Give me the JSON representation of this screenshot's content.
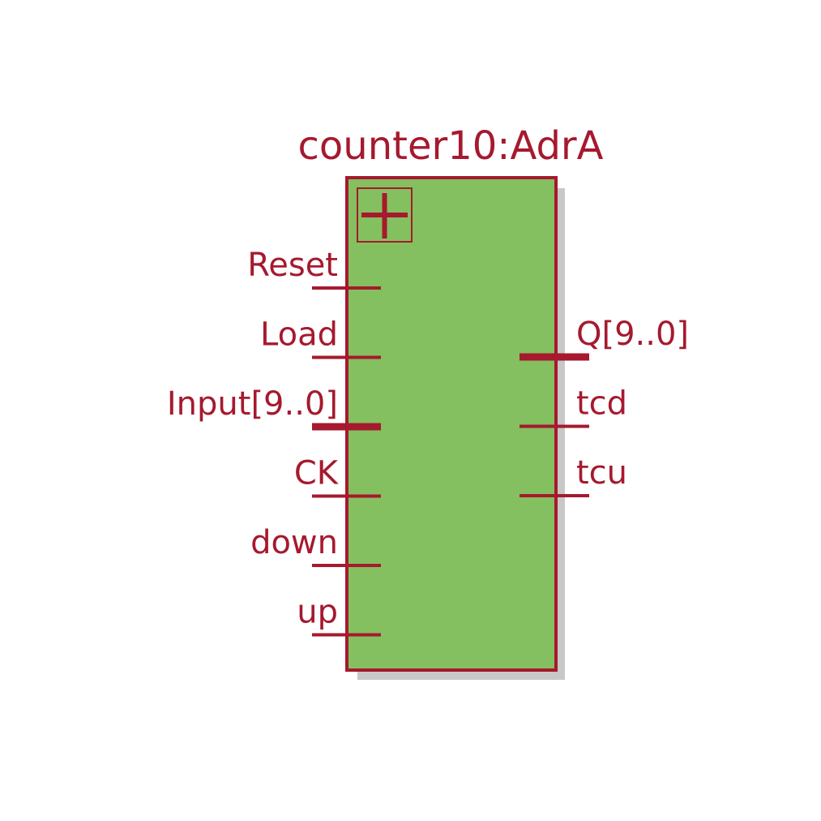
{
  "block": {
    "title": "counter10:AdrA",
    "colors": {
      "fill": "#84c05f",
      "stroke": "#a6192e",
      "shadow": "#c8c8c8",
      "text": "#a6192e"
    }
  },
  "inputs": [
    {
      "label": "Reset",
      "bus": false
    },
    {
      "label": "Load",
      "bus": false
    },
    {
      "label": "Input[9..0]",
      "bus": true
    },
    {
      "label": "CK",
      "bus": false
    },
    {
      "label": "down",
      "bus": false
    },
    {
      "label": "up",
      "bus": false
    }
  ],
  "outputs": [
    {
      "label": "Q[9..0]",
      "bus": true
    },
    {
      "label": "tcd",
      "bus": false
    },
    {
      "label": "tcu",
      "bus": false
    }
  ],
  "icons": {
    "expand": "plus-icon"
  }
}
